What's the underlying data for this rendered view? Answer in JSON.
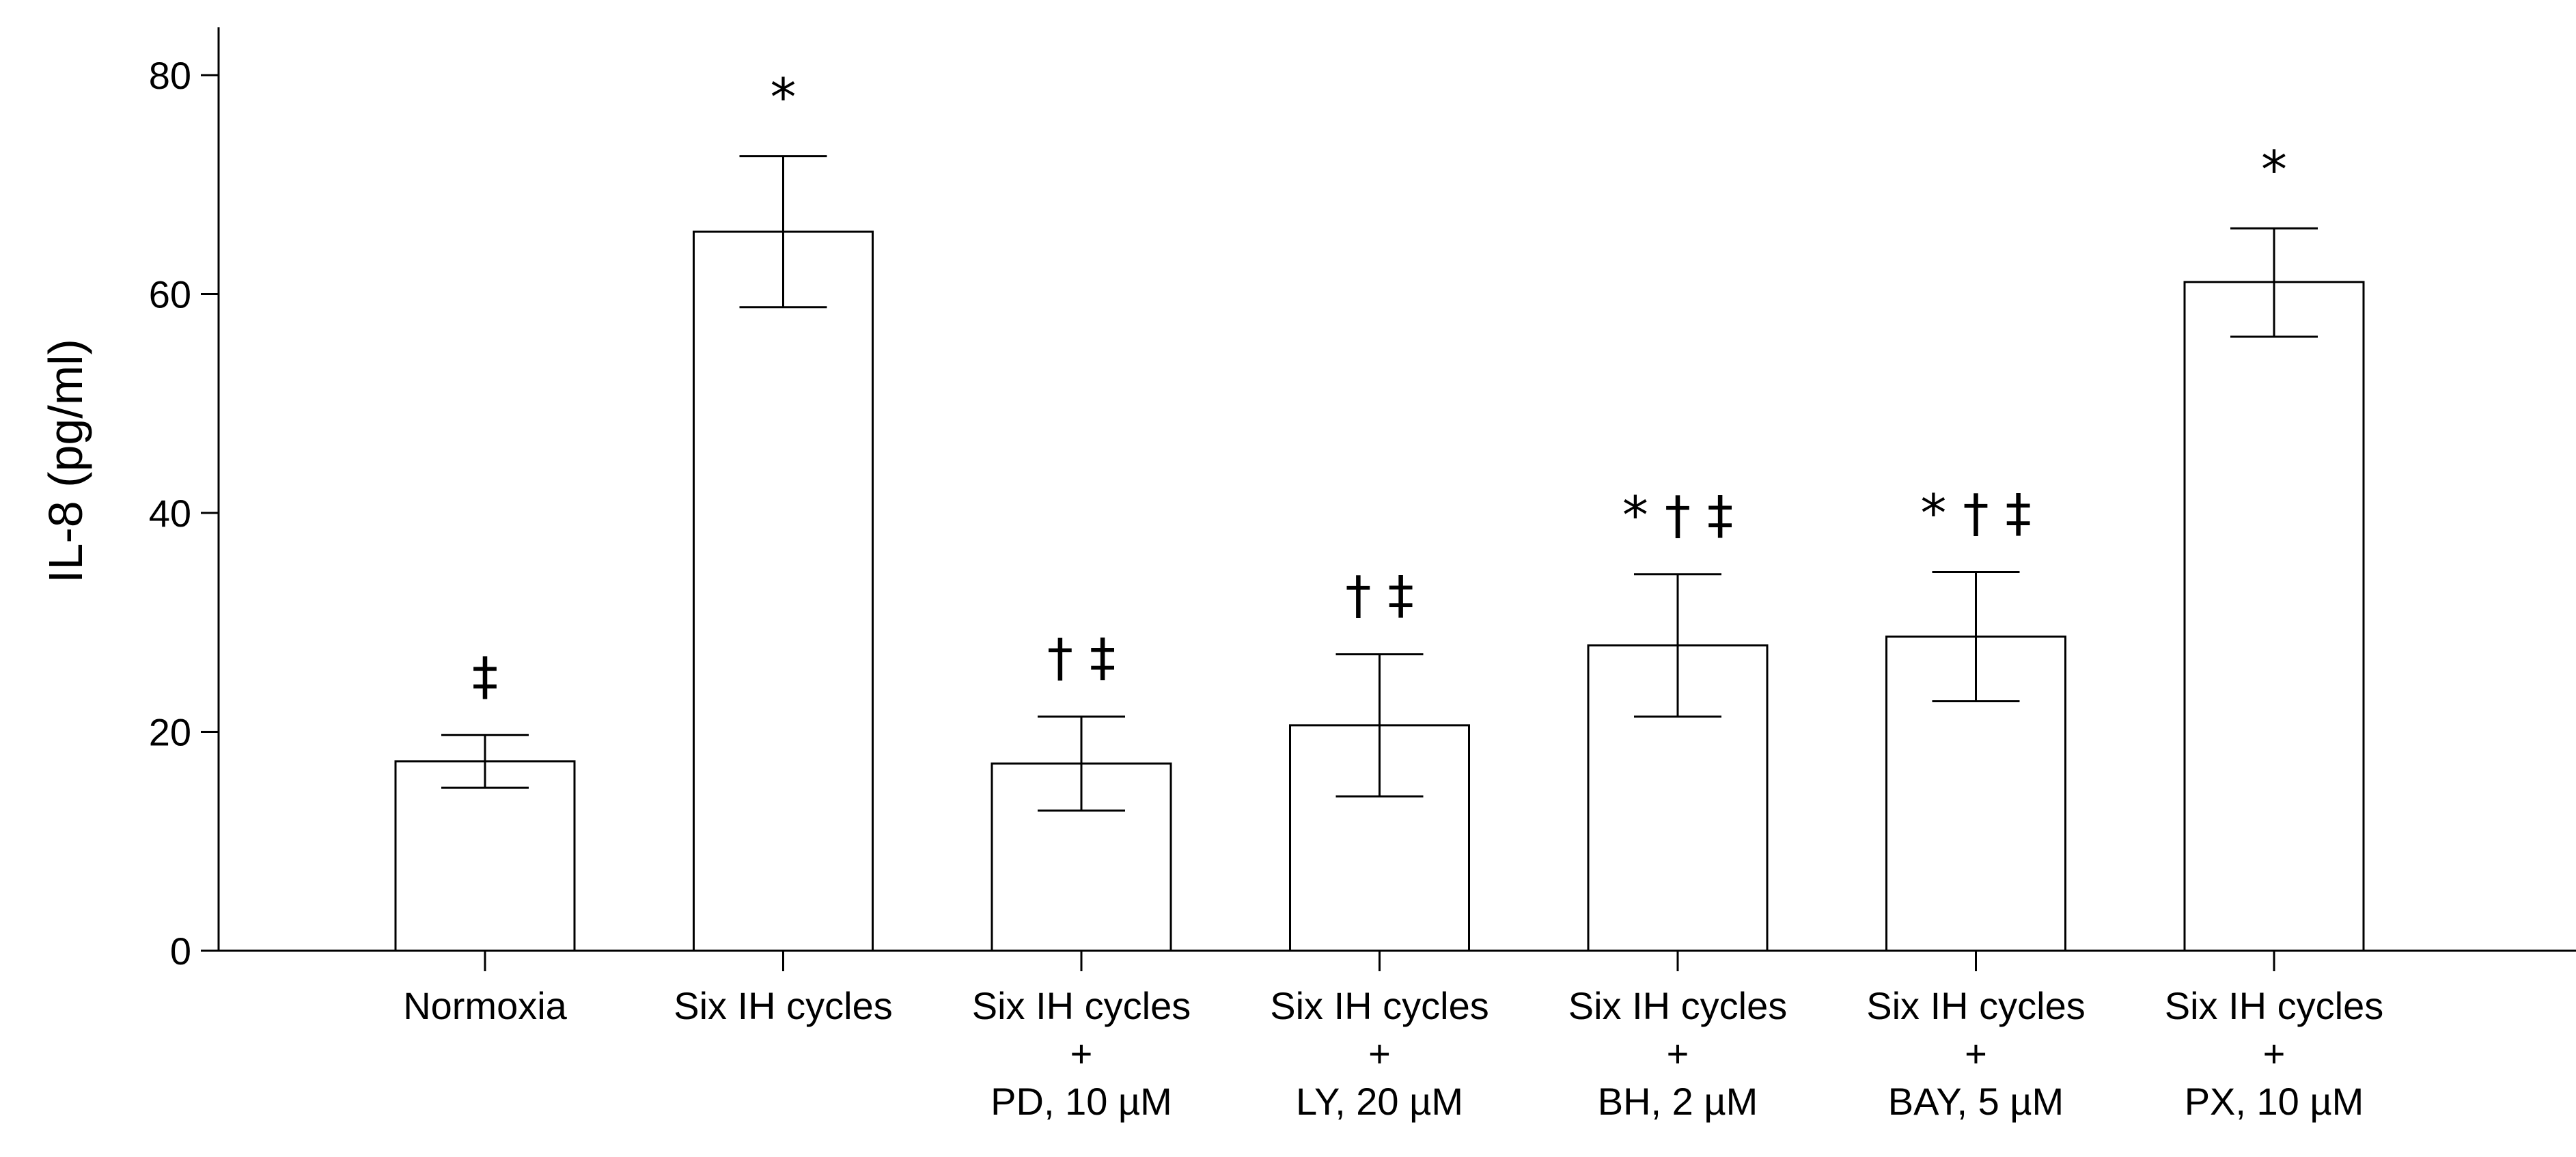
{
  "chart_data": {
    "type": "bar",
    "title": "",
    "xlabel": "",
    "ylabel": "IL-8 (pg/ml)",
    "ylim": [
      0,
      80
    ],
    "yticks": [
      0,
      20,
      40,
      60,
      80
    ],
    "grid": false,
    "categories": [
      [
        "Normoxia"
      ],
      [
        "Six IH cycles"
      ],
      [
        "Six IH cycles",
        "+",
        "PD, 10 µM"
      ],
      [
        "Six IH cycles",
        "+",
        "LY, 20 µM"
      ],
      [
        "Six IH cycles",
        "+",
        "BH, 2 µM"
      ],
      [
        "Six IH cycles",
        "+",
        "BAY, 5 µM"
      ],
      [
        "Six IH cycles",
        "+",
        "PX, 10 µM"
      ]
    ],
    "values": [
      17.3,
      65.7,
      17.1,
      20.6,
      27.9,
      28.7,
      61.1
    ],
    "error_low": [
      14.9,
      58.8,
      12.8,
      14.1,
      21.4,
      22.8,
      56.1
    ],
    "error_high": [
      19.7,
      72.6,
      21.4,
      27.1,
      34.4,
      34.6,
      66.0
    ],
    "significance": [
      "‡",
      "*",
      "† ‡",
      "† ‡",
      "* † ‡",
      "* † ‡",
      "*"
    ],
    "colors": {
      "bar_fill": "#ffffff",
      "stroke": "#000000",
      "background": "#ffffff"
    }
  }
}
